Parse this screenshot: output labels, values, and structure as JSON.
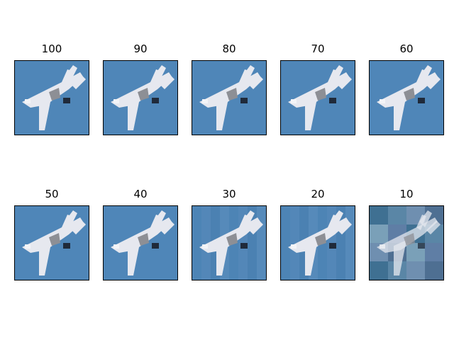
{
  "panels": [
    {
      "label": "100",
      "quality": 100
    },
    {
      "label": "90",
      "quality": 90
    },
    {
      "label": "80",
      "quality": 80
    },
    {
      "label": "70",
      "quality": 70
    },
    {
      "label": "60",
      "quality": 60
    },
    {
      "label": "50",
      "quality": 50
    },
    {
      "label": "40",
      "quality": 40
    },
    {
      "label": "30",
      "quality": 30
    },
    {
      "label": "20",
      "quality": 20
    },
    {
      "label": "10",
      "quality": 10
    }
  ],
  "colors": {
    "sky": "#4f86b8",
    "aircraft": "#e6e8ef",
    "aircraft_shadow": "#8d8f95",
    "border": "#000000"
  },
  "image_subject_icon": "fighter-jet-icon"
}
